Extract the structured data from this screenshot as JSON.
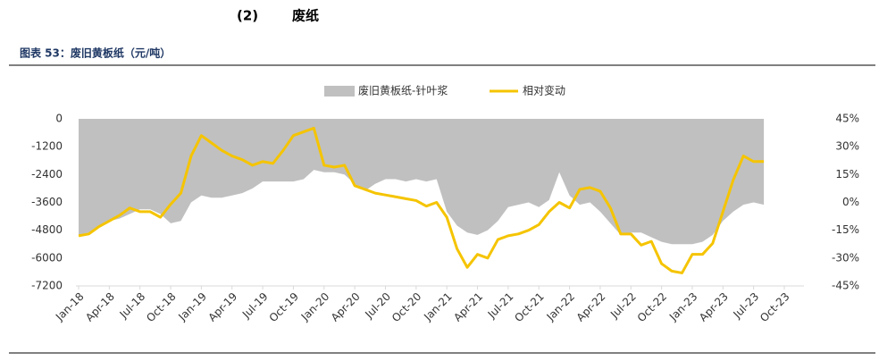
{
  "section_number": "(2)",
  "section_title": "废纸",
  "chart_data": {
    "type": "combo",
    "title": "图表 53：废旧黄板纸（元/吨）",
    "x": [
      "2018-01",
      "2018-02",
      "2018-03",
      "2018-04",
      "2018-05",
      "2018-06",
      "2018-07",
      "2018-08",
      "2018-09",
      "2018-10",
      "2018-11",
      "2018-12",
      "2019-01",
      "2019-02",
      "2019-03",
      "2019-04",
      "2019-05",
      "2019-06",
      "2019-07",
      "2019-08",
      "2019-09",
      "2019-10",
      "2019-11",
      "2019-12",
      "2020-01",
      "2020-02",
      "2020-03",
      "2020-04",
      "2020-05",
      "2020-06",
      "2020-07",
      "2020-08",
      "2020-09",
      "2020-10",
      "2020-11",
      "2020-12",
      "2021-01",
      "2021-02",
      "2021-03",
      "2021-04",
      "2021-05",
      "2021-06",
      "2021-07",
      "2021-08",
      "2021-09",
      "2021-10",
      "2021-11",
      "2021-12",
      "2022-01",
      "2022-02",
      "2022-03",
      "2022-04",
      "2022-05",
      "2022-06",
      "2022-07",
      "2022-08",
      "2022-09",
      "2022-10",
      "2022-11",
      "2022-12",
      "2023-01",
      "2023-02",
      "2023-03",
      "2023-04",
      "2023-05",
      "2023-06",
      "2023-07",
      "2023-08"
    ],
    "series": [
      {
        "name": "废旧黄板纸-针叶浆",
        "type": "area",
        "color": "#c0c0c0",
        "values": [
          -5000,
          -4900,
          -4700,
          -4400,
          -4300,
          -4100,
          -3900,
          -3900,
          -4100,
          -4500,
          -4400,
          -3600,
          -3300,
          -3400,
          -3400,
          -3300,
          -3200,
          -3000,
          -2700,
          -2700,
          -2700,
          -2700,
          -2600,
          -2200,
          -2300,
          -2300,
          -2400,
          -2800,
          -3100,
          -2800,
          -2600,
          -2600,
          -2700,
          -2600,
          -2700,
          -2600,
          -4000,
          -4600,
          -4900,
          -5000,
          -4800,
          -4400,
          -3800,
          -3700,
          -3600,
          -3800,
          -3500,
          -2300,
          -3300,
          -3700,
          -3600,
          -4000,
          -4500,
          -5000,
          -4900,
          -4900,
          -5100,
          -5300,
          -5400,
          -5400,
          -5400,
          -5300,
          -5000,
          -4400,
          -4000,
          -3700,
          -3600,
          -3700
        ]
      },
      {
        "name": "相对变动",
        "type": "line",
        "axis": "y2",
        "color": "#f5c400",
        "values": [
          -18,
          -17,
          -13,
          -10,
          -7,
          -3,
          -5,
          -5,
          -8,
          -1,
          5,
          25,
          36,
          32,
          28,
          25,
          23,
          20,
          22,
          21,
          28,
          36,
          38,
          40,
          20,
          19,
          20,
          9,
          7,
          5,
          4,
          3,
          2,
          1,
          -2,
          0,
          -8,
          -25,
          -35,
          -28,
          -30,
          -20,
          -18,
          -17,
          -15,
          -12,
          -5,
          0,
          -3,
          7,
          8,
          6,
          -3,
          -17,
          -17,
          -23,
          -21,
          -33,
          -37,
          -38,
          -28,
          -28,
          -22,
          -5,
          12,
          25,
          22,
          22
        ]
      }
    ],
    "xlim": [
      "2018-01",
      "2023-10"
    ],
    "xticks": [
      {
        "value": "2018-01",
        "label": "Jan-18"
      },
      {
        "value": "2018-04",
        "label": "Apr-18"
      },
      {
        "value": "2018-07",
        "label": "Jul-18"
      },
      {
        "value": "2018-10",
        "label": "Oct-18"
      },
      {
        "value": "2019-01",
        "label": "Jan-19"
      },
      {
        "value": "2019-04",
        "label": "Apr-19"
      },
      {
        "value": "2019-07",
        "label": "Jul-19"
      },
      {
        "value": "2019-10",
        "label": "Oct-19"
      },
      {
        "value": "2020-01",
        "label": "Jan-20"
      },
      {
        "value": "2020-04",
        "label": "Apr-20"
      },
      {
        "value": "2020-07",
        "label": "Jul-20"
      },
      {
        "value": "2020-10",
        "label": "Oct-20"
      },
      {
        "value": "2021-01",
        "label": "Jan-21"
      },
      {
        "value": "2021-04",
        "label": "Apr-21"
      },
      {
        "value": "2021-07",
        "label": "Jul-21"
      },
      {
        "value": "2021-10",
        "label": "Oct-21"
      },
      {
        "value": "2022-01",
        "label": "Jan-22"
      },
      {
        "value": "2022-04",
        "label": "Apr-22"
      },
      {
        "value": "2022-07",
        "label": "Jul-22"
      },
      {
        "value": "2022-10",
        "label": "Oct-22"
      },
      {
        "value": "2023-01",
        "label": "Jan-23"
      },
      {
        "value": "2023-04",
        "label": "Apr-23"
      },
      {
        "value": "2023-07",
        "label": "Jul-23"
      },
      {
        "value": "2023-10",
        "label": "Oct-23"
      }
    ],
    "ylim": [
      -7200,
      0
    ],
    "yticks": [
      0,
      -1200,
      -2400,
      -3600,
      -4800,
      -6000,
      -7200
    ],
    "y2lim": [
      -45,
      45
    ],
    "y2ticks": [
      {
        "value": 45,
        "label": "45%"
      },
      {
        "value": 30,
        "label": "30%"
      },
      {
        "value": 15,
        "label": "15%"
      },
      {
        "value": 0,
        "label": "0%"
      },
      {
        "value": -15,
        "label": "-15%"
      },
      {
        "value": -30,
        "label": "-30%"
      },
      {
        "value": -45,
        "label": "-45%"
      }
    ],
    "legend": "top"
  }
}
